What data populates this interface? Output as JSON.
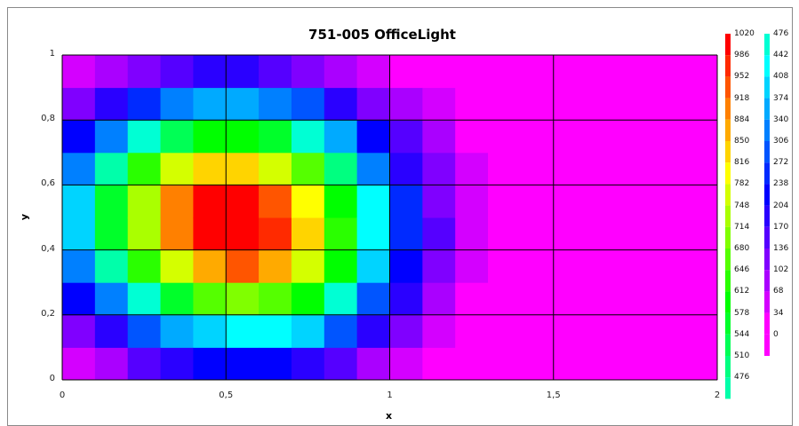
{
  "chart_data": {
    "type": "heatmap",
    "title": "751-005 OfficeLight",
    "xlabel": "x",
    "ylabel": "y",
    "xlim": [
      0,
      2
    ],
    "ylim": [
      0,
      1
    ],
    "x_ticks": [
      "0",
      "0,5",
      "1",
      "1,5",
      "2"
    ],
    "y_ticks": [
      "0",
      "0,2",
      "0,4",
      "0,6",
      "0,8",
      "1"
    ],
    "grid": true,
    "peak": {
      "x": 0.5,
      "y": 0.5,
      "value": 1020
    },
    "x": [
      0,
      0.1,
      0.2,
      0.3,
      0.4,
      0.5,
      0.6,
      0.7,
      0.8,
      0.9,
      1.0,
      1.1,
      1.2,
      1.3,
      1.4,
      1.5,
      1.6,
      1.7,
      1.8,
      1.9,
      2.0
    ],
    "y": [
      0,
      0.1,
      0.2,
      0.3,
      0.4,
      0.5,
      0.6,
      0.7,
      0.8,
      0.9,
      1.0
    ],
    "legend_scale_high": {
      "labels": [
        "1020",
        "986",
        "952",
        "918",
        "884",
        "850",
        "816",
        "782",
        "748",
        "714",
        "680",
        "646",
        "612",
        "578",
        "544",
        "510",
        "476"
      ],
      "colors": [
        "#ff0000",
        "#ff2a00",
        "#ff5500",
        "#ff8000",
        "#ffaa00",
        "#ffd400",
        "#ffff00",
        "#d4ff00",
        "#aaff00",
        "#80ff00",
        "#55ff00",
        "#2aff00",
        "#00ff00",
        "#00ff2a",
        "#00ff55",
        "#00ff80",
        "#00ffaa"
      ]
    },
    "legend_scale_low": {
      "labels": [
        "476",
        "442",
        "408",
        "374",
        "340",
        "306",
        "272",
        "238",
        "204",
        "170",
        "136",
        "102",
        "68",
        "34",
        "0"
      ],
      "colors": [
        "#00ffd4",
        "#00ffff",
        "#00d4ff",
        "#00aaff",
        "#0080ff",
        "#0055ff",
        "#002aff",
        "#0000ff",
        "#2a00ff",
        "#5500ff",
        "#8000ff",
        "#aa00ff",
        "#d400ff",
        "#ff00ff",
        "#ff00ff"
      ]
    }
  }
}
